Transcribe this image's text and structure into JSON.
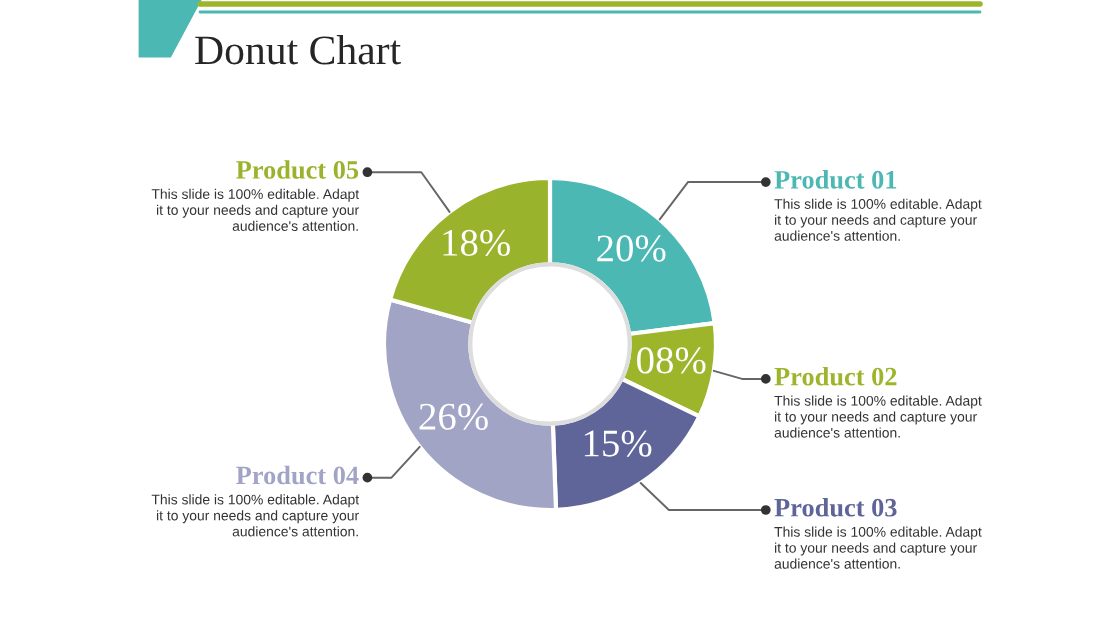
{
  "chart_data": {
    "type": "donut",
    "title": "Donut Chart",
    "categories": [
      "Product 01",
      "Product 02",
      "Product 03",
      "Product 04",
      "Product 05"
    ],
    "values": [
      20,
      8,
      15,
      26,
      18
    ],
    "value_labels": [
      "20%",
      "08%",
      "15%",
      "26%",
      "18%"
    ],
    "colors": [
      "#4cb8b4",
      "#9db52b",
      "#5f6598",
      "#a2a4c5",
      "#9ab32c"
    ],
    "annotations": [
      "This slide is 100% editable. Adapt it to your needs and capture your audience's attention.",
      "This slide is 100% editable. Adapt it to your needs and capture your audience's attention.",
      "This slide is 100% editable. Adapt it to your needs and capture your audience's attention.",
      "This slide is 100% editable. Adapt it to your needs and capture your audience's attention.",
      "This slide is 100% editable. Adapt it to your needs and capture your audience's attention."
    ],
    "legend": false
  }
}
